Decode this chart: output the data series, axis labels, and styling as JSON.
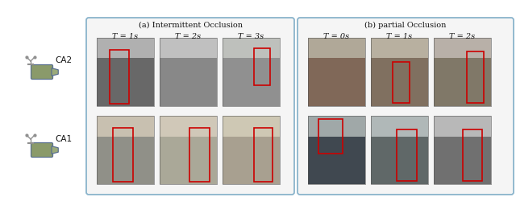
{
  "figure_width": 6.4,
  "figure_height": 2.45,
  "dpi": 100,
  "background_color": "#ffffff",
  "left_panel_label": "(a) Intermittent Occlusion",
  "right_panel_label": "(b) partial Occlusion",
  "ca1_label": "CA1",
  "ca2_label": "CA2",
  "left_time_labels": [
    "T = 1s",
    "T = 2s",
    "T = 3s"
  ],
  "right_time_labels": [
    "T = 0s",
    "T = 1s",
    "T = 2s"
  ],
  "panel_border_color": "#8ab4cc",
  "red_box_color": "#cc0000",
  "camera_body_color": "#8a9a6a",
  "camera_lens_color": "#9aaa7a",
  "camera_border_color": "#5a7090",
  "antenna_color": "#909090",
  "text_color": "#111111",
  "label_fontsize": 7.0,
  "time_fontsize": 7.0,
  "ca_fontsize": 7.5,
  "left_ca1_colors": [
    "#a8a090",
    "#b0aa9a",
    "#b4ae9e"
  ],
  "left_ca2_colors": [
    "#787878",
    "#909090",
    "#989898"
  ],
  "right_ca1_colors": [
    "#505860",
    "#707878",
    "#808080"
  ],
  "right_ca2_colors": [
    "#887060",
    "#887868",
    "#888070"
  ]
}
